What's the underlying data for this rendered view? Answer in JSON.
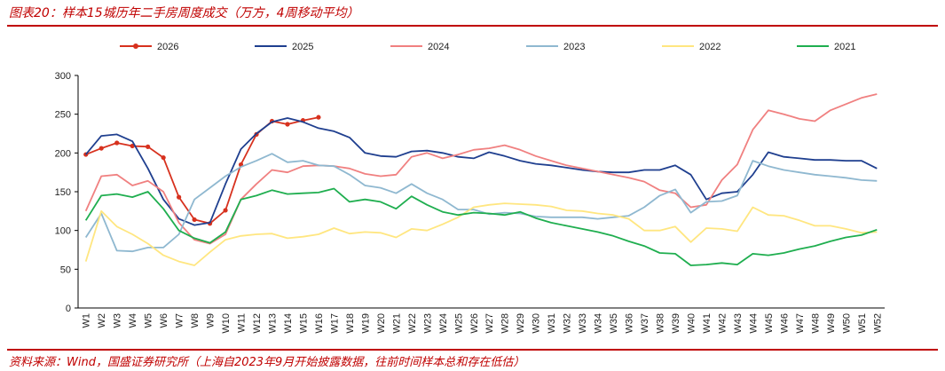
{
  "chart_data": {
    "type": "line",
    "title": "图表20：样本15城历年二手房周度成交（万方，4周移动平均）",
    "source": "资料来源：Wind，国盛证券研究所（上海自2023年9月开始披露数据，往前时间样本总和存在低估）",
    "categories": [
      "W1",
      "W2",
      "W3",
      "W4",
      "W5",
      "W6",
      "W7",
      "W8",
      "W9",
      "W10",
      "W11",
      "W12",
      "W13",
      "W14",
      "W15",
      "W16",
      "W17",
      "W18",
      "W19",
      "W20",
      "W21",
      "W22",
      "W23",
      "W24",
      "W25",
      "W26",
      "W27",
      "W28",
      "W29",
      "W30",
      "W31",
      "W32",
      "W33",
      "W34",
      "W35",
      "W36",
      "W37",
      "W38",
      "W39",
      "W40",
      "W41",
      "W42",
      "W43",
      "W44",
      "W45",
      "W46",
      "W47",
      "W48",
      "W49",
      "W50",
      "W51",
      "W52"
    ],
    "ylim": [
      0,
      300
    ],
    "yticks": [
      0,
      50,
      100,
      150,
      200,
      250,
      300
    ],
    "legend": "top",
    "series": [
      {
        "name": "2026",
        "color": "#d7311e",
        "markers": true,
        "values": [
          198,
          206,
          213,
          209,
          208,
          194,
          143,
          114,
          109,
          126,
          185,
          224,
          241,
          237,
          242,
          246,
          null,
          null,
          null,
          null,
          null,
          null,
          null,
          null,
          null,
          null,
          null,
          null,
          null,
          null,
          null,
          null,
          null,
          null,
          null,
          null,
          null,
          null,
          null,
          null,
          null,
          null,
          null,
          null,
          null,
          null,
          null,
          null,
          null,
          null,
          null,
          null
        ]
      },
      {
        "name": "2025",
        "color": "#1f3f8f",
        "values": [
          198,
          222,
          224,
          215,
          180,
          140,
          115,
          107,
          110,
          160,
          205,
          225,
          240,
          245,
          240,
          232,
          228,
          220,
          200,
          196,
          195,
          202,
          203,
          200,
          195,
          193,
          201,
          196,
          190,
          186,
          184,
          181,
          178,
          176,
          175,
          175,
          178,
          178,
          184,
          172,
          140,
          148,
          150,
          172,
          201,
          195,
          193,
          191,
          191,
          190,
          190,
          180
        ]
      },
      {
        "name": "2024",
        "color": "#f08080",
        "values": [
          125,
          170,
          172,
          158,
          164,
          150,
          110,
          88,
          83,
          95,
          140,
          160,
          178,
          175,
          183,
          184,
          183,
          180,
          173,
          170,
          172,
          195,
          200,
          193,
          198,
          204,
          206,
          210,
          204,
          196,
          190,
          184,
          180,
          176,
          172,
          168,
          163,
          152,
          148,
          130,
          133,
          165,
          185,
          230,
          255,
          250,
          244,
          241,
          255,
          263,
          271,
          276
        ]
      },
      {
        "name": "2023",
        "color": "#8fb8d0",
        "values": [
          91,
          122,
          74,
          73,
          78,
          78,
          95,
          140,
          155,
          170,
          182,
          190,
          199,
          188,
          190,
          184,
          183,
          172,
          158,
          155,
          148,
          160,
          148,
          140,
          127,
          127,
          121,
          123,
          122,
          118,
          117,
          117,
          117,
          115,
          117,
          119,
          130,
          145,
          153,
          123,
          137,
          138,
          145,
          190,
          183,
          178,
          175,
          172,
          170,
          168,
          165,
          164
        ]
      },
      {
        "name": "2022",
        "color": "#ffe680",
        "values": [
          60,
          125,
          105,
          95,
          83,
          68,
          60,
          55,
          72,
          88,
          93,
          95,
          96,
          90,
          92,
          95,
          103,
          96,
          98,
          97,
          91,
          102,
          100,
          108,
          117,
          130,
          133,
          135,
          134,
          133,
          131,
          126,
          125,
          122,
          120,
          115,
          100,
          100,
          105,
          85,
          103,
          102,
          99,
          130,
          120,
          119,
          113,
          106,
          106,
          102,
          97,
          98
        ]
      },
      {
        "name": "2021",
        "color": "#1fae4f",
        "values": [
          113,
          145,
          147,
          143,
          150,
          128,
          100,
          90,
          84,
          98,
          140,
          145,
          152,
          147,
          148,
          149,
          154,
          137,
          140,
          137,
          128,
          144,
          133,
          124,
          120,
          123,
          122,
          120,
          124,
          116,
          110,
          106,
          102,
          98,
          93,
          86,
          80,
          71,
          70,
          55,
          56,
          58,
          56,
          70,
          68,
          71,
          76,
          80,
          86,
          91,
          94,
          101
        ]
      }
    ]
  }
}
